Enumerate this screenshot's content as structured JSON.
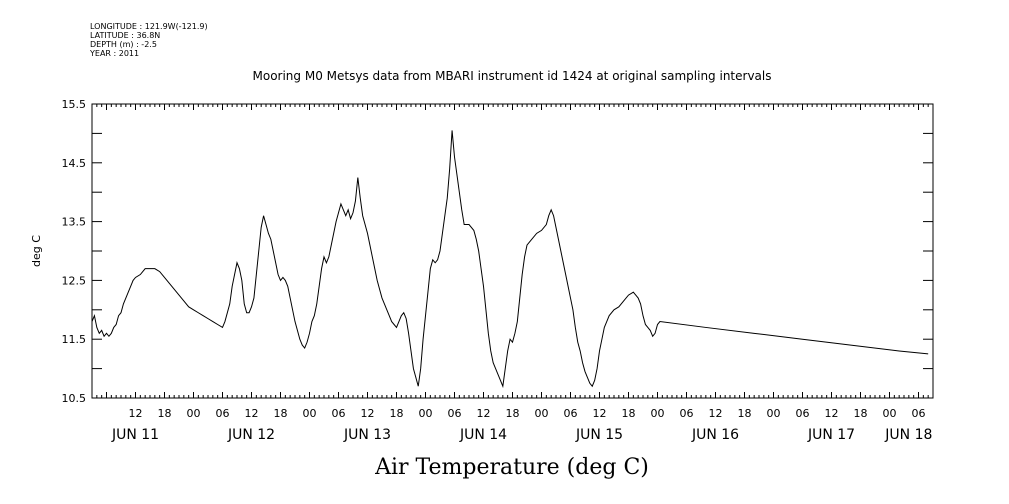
{
  "header": {
    "longitude": "LONGITUDE : 121.9W(-121.9)",
    "latitude": "LATITUDE : 36.8N",
    "depth": "DEPTH (m) : -2.5",
    "year": "YEAR : 2011"
  },
  "chart_data": {
    "type": "line",
    "title": "Mooring M0 Metsys data from MBARI instrument id 1424 at original sampling intervals",
    "xlabel": "Air Temperature (deg C)",
    "ylabel": "deg C",
    "ylim": [
      10.5,
      15.5
    ],
    "yticks": [
      "10.5",
      "11.5",
      "12.5",
      "13.5",
      "14.5",
      "15.5"
    ],
    "x_units": "hours since JUN 11 00:00 (2011)",
    "xlim": [
      3,
      177
    ],
    "hour_ticks": [
      {
        "x": 12,
        "label": "12"
      },
      {
        "x": 18,
        "label": "18"
      },
      {
        "x": 24,
        "label": "00"
      },
      {
        "x": 30,
        "label": "06"
      },
      {
        "x": 36,
        "label": "12"
      },
      {
        "x": 42,
        "label": "18"
      },
      {
        "x": 48,
        "label": "00"
      },
      {
        "x": 54,
        "label": "06"
      },
      {
        "x": 60,
        "label": "12"
      },
      {
        "x": 66,
        "label": "18"
      },
      {
        "x": 72,
        "label": "00"
      },
      {
        "x": 78,
        "label": "06"
      },
      {
        "x": 84,
        "label": "12"
      },
      {
        "x": 90,
        "label": "18"
      },
      {
        "x": 96,
        "label": "00"
      },
      {
        "x": 102,
        "label": "06"
      },
      {
        "x": 108,
        "label": "12"
      },
      {
        "x": 114,
        "label": "18"
      },
      {
        "x": 120,
        "label": "00"
      },
      {
        "x": 126,
        "label": "06"
      },
      {
        "x": 132,
        "label": "12"
      },
      {
        "x": 138,
        "label": "18"
      },
      {
        "x": 144,
        "label": "00"
      },
      {
        "x": 150,
        "label": "06"
      },
      {
        "x": 156,
        "label": "12"
      },
      {
        "x": 162,
        "label": "18"
      },
      {
        "x": 168,
        "label": "00"
      },
      {
        "x": 174,
        "label": "06"
      }
    ],
    "day_labels": [
      {
        "x": 12,
        "label": "JUN 11"
      },
      {
        "x": 36,
        "label": "JUN 12"
      },
      {
        "x": 60,
        "label": "JUN 13"
      },
      {
        "x": 84,
        "label": "JUN 14"
      },
      {
        "x": 108,
        "label": "JUN 15"
      },
      {
        "x": 132,
        "label": "JUN 16"
      },
      {
        "x": 156,
        "label": "JUN 17"
      },
      {
        "x": 172,
        "label": "JUN 18"
      }
    ],
    "series": [
      {
        "points": [
          [
            3.0,
            11.8
          ],
          [
            3.5,
            11.9
          ],
          [
            4.0,
            11.7
          ],
          [
            4.5,
            11.6
          ],
          [
            5.0,
            11.65
          ],
          [
            5.5,
            11.55
          ],
          [
            6.0,
            11.6
          ],
          [
            6.5,
            11.55
          ],
          [
            7.0,
            11.6
          ],
          [
            7.5,
            11.7
          ],
          [
            8.0,
            11.75
          ],
          [
            8.5,
            11.9
          ],
          [
            9.0,
            11.95
          ],
          [
            9.5,
            12.1
          ],
          [
            10.0,
            12.2
          ],
          [
            10.5,
            12.3
          ],
          [
            11.0,
            12.4
          ],
          [
            11.5,
            12.5
          ],
          [
            12.0,
            12.55
          ],
          [
            13.0,
            12.6
          ],
          [
            14.0,
            12.7
          ],
          [
            15.0,
            12.7
          ],
          [
            16.0,
            12.7
          ],
          [
            17.0,
            12.65
          ],
          [
            18.0,
            12.55
          ],
          [
            19.0,
            12.45
          ],
          [
            20.0,
            12.35
          ],
          [
            21.0,
            12.25
          ],
          [
            22.0,
            12.15
          ],
          [
            23.0,
            12.05
          ],
          [
            24.0,
            12.0
          ],
          [
            25.0,
            11.95
          ],
          [
            26.0,
            11.9
          ],
          [
            27.0,
            11.85
          ],
          [
            28.0,
            11.8
          ],
          [
            29.0,
            11.75
          ],
          [
            30.0,
            11.7
          ],
          [
            30.5,
            11.8
          ],
          [
            31.0,
            11.95
          ],
          [
            31.5,
            12.1
          ],
          [
            32.0,
            12.4
          ],
          [
            32.5,
            12.6
          ],
          [
            33.0,
            12.8
          ],
          [
            33.5,
            12.7
          ],
          [
            34.0,
            12.5
          ],
          [
            34.5,
            12.1
          ],
          [
            35.0,
            11.95
          ],
          [
            35.5,
            11.95
          ],
          [
            36.0,
            12.05
          ],
          [
            36.5,
            12.2
          ],
          [
            37.0,
            12.6
          ],
          [
            37.5,
            13.0
          ],
          [
            38.0,
            13.4
          ],
          [
            38.5,
            13.6
          ],
          [
            39.0,
            13.45
          ],
          [
            39.5,
            13.3
          ],
          [
            40.0,
            13.2
          ],
          [
            40.5,
            13.0
          ],
          [
            41.0,
            12.8
          ],
          [
            41.5,
            12.6
          ],
          [
            42.0,
            12.5
          ],
          [
            42.5,
            12.55
          ],
          [
            43.0,
            12.5
          ],
          [
            43.5,
            12.4
          ],
          [
            44.0,
            12.2
          ],
          [
            44.5,
            12.0
          ],
          [
            45.0,
            11.8
          ],
          [
            45.5,
            11.65
          ],
          [
            46.0,
            11.5
          ],
          [
            46.5,
            11.4
          ],
          [
            47.0,
            11.35
          ],
          [
            47.5,
            11.45
          ],
          [
            48.0,
            11.6
          ],
          [
            48.5,
            11.8
          ],
          [
            49.0,
            11.9
          ],
          [
            49.5,
            12.1
          ],
          [
            50.0,
            12.4
          ],
          [
            50.5,
            12.7
          ],
          [
            51.0,
            12.9
          ],
          [
            51.5,
            12.8
          ],
          [
            52.0,
            12.9
          ],
          [
            52.5,
            13.1
          ],
          [
            53.0,
            13.3
          ],
          [
            53.5,
            13.5
          ],
          [
            54.0,
            13.65
          ],
          [
            54.5,
            13.8
          ],
          [
            55.0,
            13.7
          ],
          [
            55.5,
            13.6
          ],
          [
            56.0,
            13.7
          ],
          [
            56.5,
            13.55
          ],
          [
            57.0,
            13.65
          ],
          [
            57.5,
            13.85
          ],
          [
            58.0,
            14.25
          ],
          [
            58.5,
            13.9
          ],
          [
            59.0,
            13.6
          ],
          [
            59.5,
            13.45
          ],
          [
            60.0,
            13.3
          ],
          [
            60.5,
            13.1
          ],
          [
            61.0,
            12.9
          ],
          [
            61.5,
            12.7
          ],
          [
            62.0,
            12.5
          ],
          [
            62.5,
            12.35
          ],
          [
            63.0,
            12.2
          ],
          [
            63.5,
            12.1
          ],
          [
            64.0,
            12.0
          ],
          [
            64.5,
            11.9
          ],
          [
            65.0,
            11.8
          ],
          [
            65.5,
            11.75
          ],
          [
            66.0,
            11.7
          ],
          [
            66.5,
            11.8
          ],
          [
            67.0,
            11.9
          ],
          [
            67.5,
            11.95
          ],
          [
            68.0,
            11.85
          ],
          [
            68.5,
            11.6
          ],
          [
            69.0,
            11.3
          ],
          [
            69.5,
            11.0
          ],
          [
            70.0,
            10.85
          ],
          [
            70.5,
            10.7
          ],
          [
            71.0,
            11.0
          ],
          [
            71.5,
            11.5
          ],
          [
            72.0,
            11.9
          ],
          [
            72.5,
            12.3
          ],
          [
            73.0,
            12.7
          ],
          [
            73.5,
            12.85
          ],
          [
            74.0,
            12.8
          ],
          [
            74.5,
            12.85
          ],
          [
            75.0,
            13.0
          ],
          [
            75.5,
            13.3
          ],
          [
            76.0,
            13.6
          ],
          [
            76.5,
            13.9
          ],
          [
            77.0,
            14.4
          ],
          [
            77.5,
            15.05
          ],
          [
            78.0,
            14.6
          ],
          [
            78.5,
            14.3
          ],
          [
            79.0,
            14.0
          ],
          [
            79.5,
            13.7
          ],
          [
            80.0,
            13.45
          ],
          [
            81.0,
            13.45
          ],
          [
            82.0,
            13.35
          ],
          [
            82.5,
            13.2
          ],
          [
            83.0,
            13.0
          ],
          [
            83.5,
            12.7
          ],
          [
            84.0,
            12.4
          ],
          [
            84.5,
            12.0
          ],
          [
            85.0,
            11.6
          ],
          [
            85.5,
            11.3
          ],
          [
            86.0,
            11.1
          ],
          [
            86.5,
            11.0
          ],
          [
            87.0,
            10.9
          ],
          [
            87.5,
            10.8
          ],
          [
            88.0,
            10.7
          ],
          [
            88.5,
            11.0
          ],
          [
            89.0,
            11.3
          ],
          [
            89.5,
            11.5
          ],
          [
            90.0,
            11.45
          ],
          [
            90.5,
            11.6
          ],
          [
            91.0,
            11.8
          ],
          [
            91.5,
            12.2
          ],
          [
            92.0,
            12.6
          ],
          [
            92.5,
            12.9
          ],
          [
            93.0,
            13.1
          ],
          [
            94.0,
            13.2
          ],
          [
            95.0,
            13.3
          ],
          [
            96.0,
            13.35
          ],
          [
            97.0,
            13.45
          ],
          [
            97.5,
            13.6
          ],
          [
            98.0,
            13.7
          ],
          [
            98.5,
            13.6
          ],
          [
            99.0,
            13.4
          ],
          [
            99.5,
            13.2
          ],
          [
            100.0,
            13.0
          ],
          [
            100.5,
            12.8
          ],
          [
            101.0,
            12.6
          ],
          [
            101.5,
            12.4
          ],
          [
            102.0,
            12.2
          ],
          [
            102.5,
            12.0
          ],
          [
            103.0,
            11.7
          ],
          [
            103.5,
            11.45
          ],
          [
            104.0,
            11.3
          ],
          [
            104.5,
            11.1
          ],
          [
            105.0,
            10.95
          ],
          [
            105.5,
            10.85
          ],
          [
            106.0,
            10.75
          ],
          [
            106.5,
            10.7
          ],
          [
            107.0,
            10.8
          ],
          [
            107.5,
            11.0
          ],
          [
            108.0,
            11.3
          ],
          [
            108.5,
            11.5
          ],
          [
            109.0,
            11.7
          ],
          [
            109.5,
            11.8
          ],
          [
            110.0,
            11.9
          ],
          [
            111.0,
            12.0
          ],
          [
            112.0,
            12.05
          ],
          [
            113.0,
            12.15
          ],
          [
            114.0,
            12.25
          ],
          [
            115.0,
            12.3
          ],
          [
            115.5,
            12.25
          ],
          [
            116.0,
            12.2
          ],
          [
            116.5,
            12.1
          ],
          [
            117.0,
            11.9
          ],
          [
            117.5,
            11.75
          ],
          [
            118.0,
            11.7
          ],
          [
            118.5,
            11.65
          ],
          [
            119.0,
            11.55
          ],
          [
            119.5,
            11.6
          ],
          [
            120.0,
            11.75
          ],
          [
            120.5,
            11.8
          ],
          [
            130.0,
            11.7
          ],
          [
            140.0,
            11.6
          ],
          [
            150.0,
            11.5
          ],
          [
            160.0,
            11.4
          ],
          [
            170.0,
            11.3
          ],
          [
            176.0,
            11.25
          ]
        ]
      }
    ]
  }
}
